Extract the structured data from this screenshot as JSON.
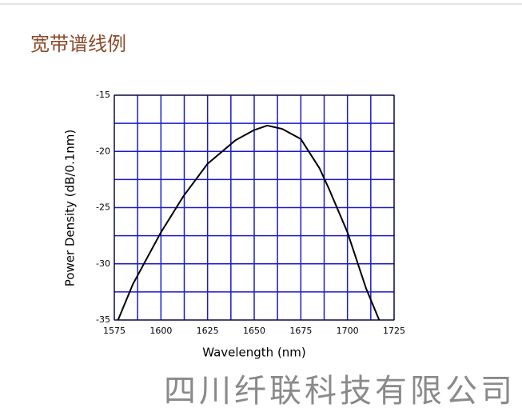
{
  "page_title": "宽带谱线例",
  "footer_text": "四川纤联科技有限公司",
  "chart_data": {
    "type": "line",
    "x_label": "Wavelength (nm)",
    "y_label": "Power Density (dB/0.1nm)",
    "x": [
      1577,
      1585,
      1600,
      1612,
      1625,
      1640,
      1650,
      1657,
      1665,
      1675,
      1685,
      1690,
      1700,
      1710,
      1717
    ],
    "values": [
      -35,
      -31.8,
      -27.2,
      -24,
      -21.1,
      -19,
      -18.1,
      -17.7,
      -18,
      -18.9,
      -21.5,
      -23.3,
      -27.2,
      -32.2,
      -35
    ],
    "color": "#000000",
    "grid_color": "#1a1ad0",
    "xlim": [
      1575,
      1725
    ],
    "xticks": [
      1575,
      1600,
      1625,
      1650,
      1675,
      1700,
      1725
    ],
    "ylim": [
      -35,
      -15
    ],
    "yticks": [
      -35,
      -30,
      -25,
      -20,
      -15
    ],
    "grid": true,
    "minor_grid": true
  }
}
